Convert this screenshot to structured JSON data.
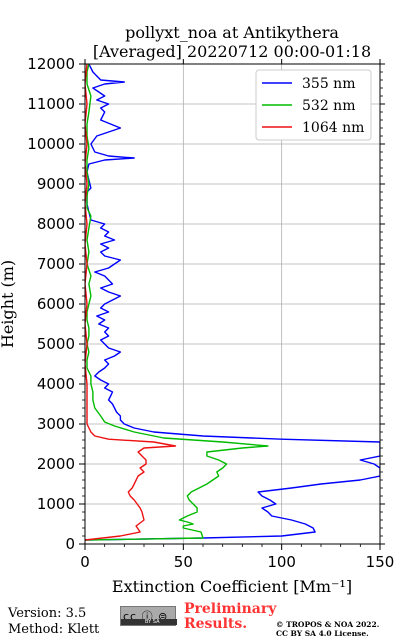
{
  "chart_data": {
    "type": "line",
    "title": "pollyxt_noa at Antikythera",
    "subtitle": "[Averaged] 20220712 00:00-01:18",
    "xlabel": "Extinction Coefficient [Mm⁻¹]",
    "ylabel": "Height (m)",
    "xlim": [
      0,
      150
    ],
    "ylim": [
      0,
      12000
    ],
    "xticks": [
      0,
      50,
      100,
      150
    ],
    "yticks": [
      0,
      1000,
      2000,
      3000,
      4000,
      5000,
      6000,
      7000,
      8000,
      9000,
      10000,
      11000,
      12000
    ],
    "grid": true,
    "legend_position": "top-right",
    "series": [
      {
        "name": "355 nm",
        "color": "#0000ff",
        "points": [
          [
            0,
            100
          ],
          [
            60,
            150
          ],
          [
            100,
            200
          ],
          [
            117,
            300
          ],
          [
            116,
            400
          ],
          [
            112,
            500
          ],
          [
            105,
            600
          ],
          [
            95,
            700
          ],
          [
            93,
            800
          ],
          [
            90,
            900
          ],
          [
            97,
            1000
          ],
          [
            94,
            1100
          ],
          [
            90,
            1200
          ],
          [
            88,
            1300
          ],
          [
            105,
            1400
          ],
          [
            120,
            1500
          ],
          [
            140,
            1600
          ],
          [
            150,
            1700
          ],
          [
            150,
            1800
          ],
          [
            150,
            1900
          ],
          [
            147,
            2000
          ],
          [
            140,
            2100
          ],
          [
            150,
            2200
          ],
          [
            150,
            2300
          ],
          [
            150,
            2400
          ],
          [
            150,
            2500
          ],
          [
            150,
            2550
          ],
          [
            100,
            2620
          ],
          [
            60,
            2700
          ],
          [
            35,
            2800
          ],
          [
            25,
            2900
          ],
          [
            20,
            3000
          ],
          [
            18,
            3100
          ],
          [
            18,
            3200
          ],
          [
            16,
            3300
          ],
          [
            15,
            3400
          ],
          [
            14,
            3500
          ],
          [
            12,
            3600
          ],
          [
            13,
            3700
          ],
          [
            14,
            3800
          ],
          [
            10,
            3900
          ],
          [
            12,
            4000
          ],
          [
            8,
            4100
          ],
          [
            5,
            4200
          ],
          [
            7,
            4300
          ],
          [
            10,
            4400
          ],
          [
            12,
            4500
          ],
          [
            10,
            4600
          ],
          [
            15,
            4700
          ],
          [
            18,
            4800
          ],
          [
            12,
            4900
          ],
          [
            10,
            5000
          ],
          [
            8,
            5100
          ],
          [
            12,
            5200
          ],
          [
            10,
            5300
          ],
          [
            12,
            5400
          ],
          [
            7,
            5500
          ],
          [
            10,
            5600
          ],
          [
            6,
            5700
          ],
          [
            12,
            5800
          ],
          [
            8,
            5900
          ],
          [
            10,
            6000
          ],
          [
            18,
            6200
          ],
          [
            12,
            6300
          ],
          [
            8,
            6400
          ],
          [
            14,
            6500
          ],
          [
            10,
            6700
          ],
          [
            5,
            6800
          ],
          [
            12,
            6900
          ],
          [
            18,
            7100
          ],
          [
            10,
            7200
          ],
          [
            8,
            7300
          ],
          [
            12,
            7400
          ],
          [
            8,
            7500
          ],
          [
            15,
            7600
          ],
          [
            10,
            7700
          ],
          [
            12,
            7800
          ],
          [
            8,
            7900
          ],
          [
            10,
            8000
          ],
          [
            3,
            8100
          ],
          [
            2,
            8300
          ],
          [
            1,
            8500
          ],
          [
            1,
            8800
          ],
          [
            3,
            8900
          ],
          [
            2,
            9100
          ],
          [
            1,
            9300
          ],
          [
            2,
            9500
          ],
          [
            10,
            9600
          ],
          [
            25,
            9650
          ],
          [
            12,
            9700
          ],
          [
            5,
            9800
          ],
          [
            3,
            10000
          ],
          [
            6,
            10200
          ],
          [
            12,
            10300
          ],
          [
            18,
            10400
          ],
          [
            8,
            10600
          ],
          [
            10,
            10800
          ],
          [
            8,
            10900
          ],
          [
            12,
            11000
          ],
          [
            6,
            11100
          ],
          [
            10,
            11200
          ],
          [
            4,
            11400
          ],
          [
            10,
            11500
          ],
          [
            20,
            11550
          ],
          [
            8,
            11600
          ],
          [
            4,
            11800
          ],
          [
            3,
            11900
          ],
          [
            2,
            12000
          ]
        ]
      },
      {
        "name": "532 nm",
        "color": "#00bb00",
        "points": [
          [
            0,
            100
          ],
          [
            60,
            150
          ],
          [
            59,
            300
          ],
          [
            50,
            400
          ],
          [
            50,
            450
          ],
          [
            55,
            500
          ],
          [
            52,
            550
          ],
          [
            48,
            600
          ],
          [
            52,
            700
          ],
          [
            57,
            800
          ],
          [
            57,
            900
          ],
          [
            55,
            1000
          ],
          [
            53,
            1100
          ],
          [
            52,
            1200
          ],
          [
            54,
            1300
          ],
          [
            58,
            1400
          ],
          [
            62,
            1500
          ],
          [
            65,
            1600
          ],
          [
            68,
            1700
          ],
          [
            67,
            1800
          ],
          [
            70,
            1900
          ],
          [
            72,
            2000
          ],
          [
            68,
            2100
          ],
          [
            62,
            2200
          ],
          [
            62,
            2300
          ],
          [
            80,
            2400
          ],
          [
            93,
            2450
          ],
          [
            70,
            2550
          ],
          [
            55,
            2600
          ],
          [
            40,
            2650
          ],
          [
            25,
            2800
          ],
          [
            15,
            2950
          ],
          [
            10,
            3050
          ],
          [
            8,
            3200
          ],
          [
            5,
            3400
          ],
          [
            4,
            3600
          ],
          [
            4,
            3800
          ],
          [
            3,
            4000
          ],
          [
            3,
            4200
          ],
          [
            1,
            4400
          ],
          [
            1,
            4600
          ],
          [
            2,
            4800
          ],
          [
            1,
            5000
          ],
          [
            2,
            5200
          ],
          [
            2,
            5400
          ],
          [
            1,
            5600
          ],
          [
            1,
            5800
          ],
          [
            2,
            6000
          ],
          [
            3,
            6200
          ],
          [
            2,
            6500
          ],
          [
            3,
            6700
          ],
          [
            1,
            7000
          ],
          [
            2,
            7300
          ],
          [
            1,
            7600
          ],
          [
            2,
            7900
          ],
          [
            3,
            8200
          ],
          [
            1,
            8400
          ],
          [
            1,
            8700
          ],
          [
            2,
            9000
          ],
          [
            1,
            9300
          ],
          [
            1,
            9600
          ],
          [
            2,
            9900
          ],
          [
            1,
            10200
          ],
          [
            1,
            10500
          ],
          [
            2,
            10800
          ],
          [
            3,
            11200
          ],
          [
            1,
            11500
          ],
          [
            1,
            11800
          ],
          [
            2,
            12000
          ]
        ]
      },
      {
        "name": "1064 nm",
        "color": "#ee1111",
        "points": [
          [
            0,
            100
          ],
          [
            18,
            200
          ],
          [
            28,
            300
          ],
          [
            26,
            450
          ],
          [
            30,
            600
          ],
          [
            29,
            800
          ],
          [
            28,
            900
          ],
          [
            25,
            1100
          ],
          [
            23,
            1200
          ],
          [
            22,
            1300
          ],
          [
            24,
            1400
          ],
          [
            25,
            1500
          ],
          [
            27,
            1700
          ],
          [
            30,
            1800
          ],
          [
            28,
            1900
          ],
          [
            31,
            2000
          ],
          [
            31,
            2100
          ],
          [
            29,
            2200
          ],
          [
            27,
            2300
          ],
          [
            30,
            2400
          ],
          [
            46,
            2450
          ],
          [
            35,
            2550
          ],
          [
            12,
            2620
          ],
          [
            5,
            2700
          ],
          [
            3,
            2800
          ],
          [
            1,
            3000
          ],
          [
            1,
            3300
          ],
          [
            1,
            3600
          ],
          [
            1,
            4000
          ],
          [
            0,
            4500
          ],
          [
            1,
            5000
          ],
          [
            0,
            5500
          ],
          [
            1,
            6000
          ],
          [
            0,
            6500
          ],
          [
            1,
            7000
          ],
          [
            0,
            7500
          ],
          [
            1,
            8000
          ],
          [
            0,
            8500
          ],
          [
            1,
            9000
          ],
          [
            0,
            9500
          ],
          [
            1,
            10000
          ],
          [
            0,
            10500
          ],
          [
            1,
            11000
          ],
          [
            0,
            11500
          ],
          [
            1,
            12000
          ]
        ]
      }
    ]
  },
  "footer": {
    "version": "Version: 3.5",
    "method": "Method: Klett",
    "license_badge": "cc ⓘ ⊜",
    "license_badge_small": "BY  SA",
    "preliminary_line1": "Preliminary",
    "preliminary_line2": "Results.",
    "credit_line1": "© TROPOS & NOA 2022.",
    "credit_line2": "CC BY SA 4.0 License."
  }
}
